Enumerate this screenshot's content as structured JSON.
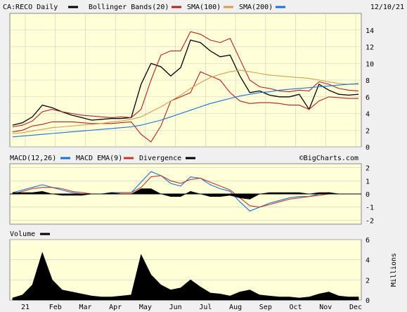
{
  "header": {
    "symbol_label": "CA:RECO Daily",
    "date": "12/10/21"
  },
  "colors": {
    "price": "#000000",
    "bollinger": "#b22222",
    "sma100": "#d4a04c",
    "sma200": "#1f6fd6",
    "macd": "#1f6fd6",
    "macd_ema": "#c0392b",
    "panel_bg": "#ffffd8",
    "grid": "#cccccc"
  },
  "legend": {
    "price": "CA:RECO Daily",
    "bollinger": "Bollinger Bands(20)",
    "sma100": "SMA(100)",
    "sma200": "SMA(200)"
  },
  "macd_legend": {
    "macd": "MACD(12,26)",
    "ema": "MACD EMA(9)",
    "divergence": "Divergence",
    "watermark": "©BigCharts.com"
  },
  "volume_legend": {
    "label": "Volume",
    "units": "Millions"
  },
  "chart_data": [
    {
      "type": "line",
      "panel": "price",
      "x_labels": [
        "21",
        "Feb",
        "Mar",
        "Apr",
        "May",
        "Jun",
        "Jul",
        "Aug",
        "Sep",
        "Oct",
        "Nov",
        "Dec"
      ],
      "y_ticks": [
        0,
        2,
        4,
        6,
        8,
        10,
        12,
        14
      ],
      "ylim": [
        0,
        16
      ],
      "series": [
        {
          "name": "CA:RECO Daily",
          "values": [
            2.6,
            2.9,
            3.6,
            5.0,
            4.7,
            4.2,
            3.8,
            3.5,
            3.2,
            3.3,
            3.4,
            3.4,
            3.5,
            7.5,
            10.0,
            9.6,
            8.5,
            9.5,
            12.8,
            12.5,
            11.5,
            10.8,
            11.0,
            8.5,
            6.5,
            6.7,
            6.2,
            6.0,
            6.0,
            6.3,
            4.5,
            7.5,
            6.8,
            6.3,
            6.2,
            6.3
          ]
        },
        {
          "name": "Bollinger Bands(20)",
          "values": [
            2.4,
            2.6,
            3.1,
            4.2,
            4.5,
            4.2,
            4.0,
            3.8,
            3.7,
            3.6,
            3.5,
            3.6,
            3.5,
            4.5,
            8.0,
            11.0,
            11.5,
            11.5,
            13.8,
            13.5,
            12.8,
            12.5,
            13.0,
            10.5,
            8.0,
            7.2,
            7.0,
            6.7,
            6.6,
            6.8,
            6.7,
            7.8,
            7.5,
            7.0,
            6.8,
            6.7
          ]
        },
        {
          "name": "Bollinger Bands(20)",
          "values": [
            1.8,
            2.0,
            2.5,
            2.7,
            3.0,
            3.0,
            3.0,
            2.9,
            2.8,
            2.8,
            2.8,
            2.9,
            3.0,
            1.5,
            0.6,
            2.5,
            5.5,
            6.0,
            6.5,
            9.0,
            8.5,
            8.0,
            6.5,
            5.5,
            5.2,
            5.3,
            5.3,
            5.2,
            5.0,
            5.0,
            4.5,
            5.5,
            6.0,
            5.9,
            5.8,
            5.8
          ]
        },
        {
          "name": "SMA(100)",
          "values": [
            1.6,
            1.7,
            1.9,
            2.1,
            2.3,
            2.4,
            2.5,
            2.6,
            2.7,
            2.8,
            3.0,
            3.1,
            3.3,
            3.6,
            4.2,
            4.8,
            5.5,
            6.2,
            7.0,
            7.7,
            8.3,
            8.7,
            9.0,
            9.2,
            9.0,
            8.8,
            8.6,
            8.5,
            8.4,
            8.3,
            8.2,
            8.0,
            7.8,
            7.6,
            7.5,
            7.5
          ]
        },
        {
          "name": "SMA(200)",
          "values": [
            1.2,
            1.3,
            1.4,
            1.5,
            1.6,
            1.7,
            1.8,
            1.9,
            2.0,
            2.1,
            2.2,
            2.3,
            2.4,
            2.6,
            2.9,
            3.2,
            3.6,
            4.0,
            4.4,
            4.8,
            5.2,
            5.5,
            5.8,
            6.1,
            6.3,
            6.5,
            6.6,
            6.8,
            6.9,
            7.0,
            7.1,
            7.2,
            7.3,
            7.4,
            7.5,
            7.6
          ]
        }
      ]
    },
    {
      "type": "line",
      "panel": "macd",
      "y_ticks": [
        2,
        1,
        0,
        -1,
        -2
      ],
      "ylim": [
        -2.3,
        2.3
      ],
      "series": [
        {
          "name": "MACD(12,26)",
          "values": [
            0.1,
            0.3,
            0.5,
            0.7,
            0.5,
            0.3,
            0.1,
            0.0,
            0.0,
            0.0,
            0.1,
            0.1,
            0.1,
            0.9,
            1.7,
            1.4,
            0.8,
            0.6,
            1.3,
            1.2,
            0.7,
            0.4,
            0.2,
            -0.6,
            -1.3,
            -1.0,
            -0.7,
            -0.5,
            -0.3,
            -0.2,
            -0.2,
            0.0,
            0.1,
            0.0,
            0.0,
            0.0
          ]
        },
        {
          "name": "MACD EMA(9)",
          "values": [
            0.0,
            0.2,
            0.4,
            0.5,
            0.5,
            0.4,
            0.2,
            0.1,
            0.0,
            0.0,
            0.0,
            0.1,
            0.1,
            0.5,
            1.3,
            1.4,
            1.0,
            0.8,
            1.1,
            1.2,
            0.9,
            0.6,
            0.3,
            -0.3,
            -0.9,
            -1.0,
            -0.8,
            -0.6,
            -0.4,
            -0.3,
            -0.2,
            -0.1,
            0.0,
            0.0,
            0.0,
            0.0
          ]
        },
        {
          "name": "Divergence",
          "values": [
            0.1,
            0.1,
            0.1,
            0.2,
            0.0,
            -0.1,
            -0.1,
            -0.1,
            0.0,
            0.0,
            0.1,
            0.0,
            0.0,
            0.4,
            0.4,
            0.0,
            -0.2,
            -0.2,
            0.2,
            0.0,
            -0.2,
            -0.2,
            -0.1,
            -0.3,
            -0.4,
            0.0,
            0.1,
            0.1,
            0.1,
            0.1,
            0.0,
            0.1,
            0.1,
            0.0,
            0.0,
            0.0
          ]
        }
      ]
    },
    {
      "type": "area",
      "panel": "volume",
      "y_ticks": [
        0,
        2,
        4,
        6
      ],
      "ylim": [
        0,
        6
      ],
      "series": [
        {
          "name": "Volume",
          "values": [
            0.2,
            0.5,
            1.5,
            4.7,
            2.0,
            1.0,
            0.8,
            0.6,
            0.4,
            0.3,
            0.3,
            0.4,
            0.5,
            4.5,
            2.5,
            1.5,
            1.0,
            1.2,
            2.0,
            1.3,
            0.7,
            0.6,
            0.4,
            0.8,
            1.0,
            0.5,
            0.4,
            0.3,
            0.3,
            0.2,
            0.3,
            0.6,
            0.8,
            0.4,
            0.3,
            0.3
          ]
        }
      ]
    }
  ]
}
